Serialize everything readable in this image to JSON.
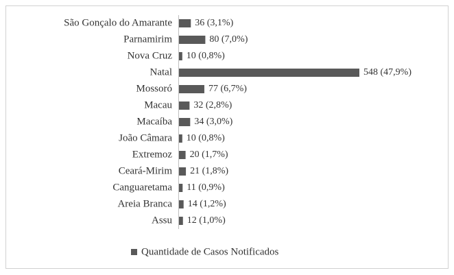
{
  "chart_data": {
    "type": "bar",
    "orientation": "horizontal",
    "categories": [
      "São Gonçalo do Amarante",
      "Parnamirim",
      "Nova Cruz",
      "Natal",
      "Mossoró",
      "Macau",
      "Macaíba",
      "João Câmara",
      "Extremoz",
      "Ceará-Mirim",
      "Canguaretama",
      "Areia Branca",
      "Assu"
    ],
    "series": [
      {
        "name": "Quantidade de Casos Notificados",
        "color": "#595959",
        "values": [
          36,
          80,
          10,
          548,
          77,
          32,
          34,
          10,
          20,
          21,
          11,
          14,
          12
        ],
        "value_labels": [
          "36 (3,1%)",
          "80 (7,0%)",
          "10 (0,8%)",
          "548 (47,9%)",
          "77 (6,7%)",
          "32 (2,8%)",
          "34 (3,0%)",
          "10 (0,8%)",
          "20 (1,7%)",
          "21 (1,8%)",
          "11 (0,9%)",
          "14 (1,2%)",
          "12 (1,0%)"
        ]
      }
    ],
    "legend": "bottom"
  }
}
